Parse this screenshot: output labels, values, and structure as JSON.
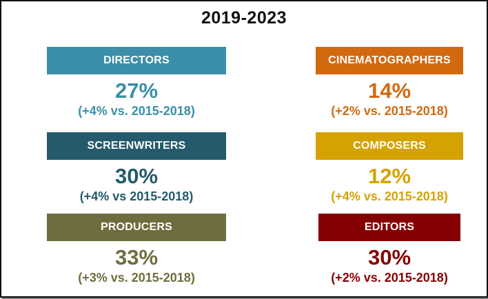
{
  "title": "2019-2023",
  "cards": [
    {
      "key": "directors",
      "label": "DIRECTORS",
      "percent": "27%",
      "change": "(+4% vs. 2015-2018)",
      "color": "#3b8fa8"
    },
    {
      "key": "screenwriters",
      "label": "SCREENWRITERS",
      "percent": "30%",
      "change": "(+4% vs 2015-2018)",
      "color": "#245a6b"
    },
    {
      "key": "producers",
      "label": "PRODUCERS",
      "percent": "33%",
      "change": "(+3% vs. 2015-2018)",
      "color": "#6f6d3e"
    },
    {
      "key": "cinematographers",
      "label": "CINEMATOGRAPHERS",
      "percent": "14%",
      "change": "(+2% vs. 2015-2018)",
      "color": "#d2690f"
    },
    {
      "key": "composers",
      "label": "COMPOSERS",
      "percent": "12%",
      "change": "(+4% vs. 2015-2018)",
      "color": "#d6a200"
    },
    {
      "key": "editors",
      "label": "EDITORS",
      "percent": "30%",
      "change": "(+2% vs. 2015-2018)",
      "color": "#850000"
    }
  ]
}
